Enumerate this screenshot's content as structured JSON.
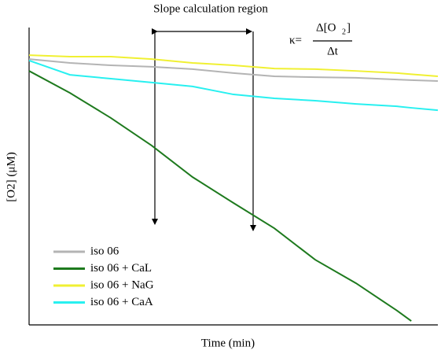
{
  "chart_data": {
    "type": "line",
    "annotation": "Slope calculation region",
    "formula": {
      "lhs": "κ=",
      "numerator": "Δ[O",
      "subscript": "2",
      "close": "]",
      "denominator": "Δt"
    },
    "y_label": "[O2] (μM)",
    "x_label": "Time (min)",
    "x": [
      0,
      10,
      20,
      30,
      40,
      50,
      60,
      70,
      80,
      90,
      93.5,
      100
    ],
    "xlim": [
      0,
      100
    ],
    "ylim": [
      0,
      100
    ],
    "legend": "lower-left",
    "series": [
      {
        "name": "iso 06",
        "color": "#b4b4b4",
        "values": [
          89.4,
          88.1,
          87.3,
          86.8,
          86.0,
          84.7,
          83.6,
          83.3,
          83.1,
          82.5,
          82.3,
          82.0
        ]
      },
      {
        "name": "iso 06 + CaL",
        "color": "#1e7a1e",
        "values": [
          85.4,
          78.0,
          69.6,
          60.3,
          49.7,
          41.0,
          32.5,
          21.9,
          14.0,
          4.8,
          1.3,
          null
        ]
      },
      {
        "name": "iso 06 + NaG",
        "color": "#f0f032",
        "values": [
          90.7,
          90.2,
          90.2,
          89.4,
          88.1,
          87.3,
          86.2,
          86.0,
          85.4,
          84.7,
          84.3,
          83.6
        ]
      },
      {
        "name": "iso 06 + CaA",
        "color": "#28f0f0",
        "values": [
          88.9,
          84.1,
          82.8,
          81.5,
          80.2,
          77.5,
          76.2,
          75.4,
          74.3,
          73.5,
          73.0,
          72.2
        ]
      }
    ]
  }
}
